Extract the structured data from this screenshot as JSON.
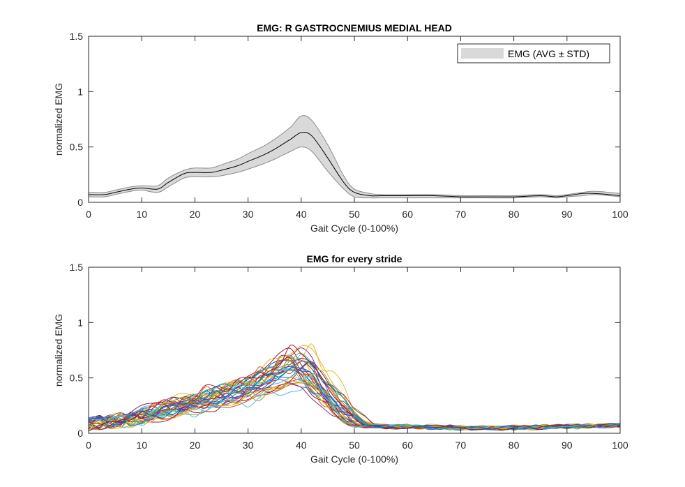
{
  "chart_data": [
    {
      "type": "area",
      "title": "EMG: R GASTROCNEMIUS MEDIAL HEAD",
      "xlabel": "Gait Cycle (0-100%)",
      "ylabel": "normalized EMG",
      "xlim": [
        0,
        100
      ],
      "ylim": [
        0,
        1.5
      ],
      "xticks": [
        "0",
        "10",
        "20",
        "30",
        "40",
        "50",
        "60",
        "70",
        "80",
        "90",
        "100"
      ],
      "yticks": [
        "0",
        "0.5",
        "1",
        "1.5"
      ],
      "grid": false,
      "legend": {
        "position": "top-right",
        "entries": [
          "EMG (AVG ± STD)"
        ]
      },
      "colors": {
        "band_fill": "#d9d9d9",
        "band_edge": "#8c8c8c",
        "mean_line": "#000000"
      },
      "series": [
        {
          "name": "EMG (AVG ± STD)",
          "x": [
            0,
            3,
            5,
            8,
            10,
            13,
            15,
            18,
            20,
            23,
            25,
            28,
            30,
            33,
            35,
            38,
            40,
            42,
            45,
            48,
            50,
            53,
            55,
            60,
            65,
            70,
            75,
            80,
            85,
            88,
            90,
            93,
            95,
            98,
            100
          ],
          "mean": [
            0.07,
            0.07,
            0.09,
            0.12,
            0.13,
            0.12,
            0.18,
            0.26,
            0.27,
            0.27,
            0.29,
            0.33,
            0.37,
            0.43,
            0.48,
            0.57,
            0.63,
            0.6,
            0.4,
            0.18,
            0.09,
            0.06,
            0.06,
            0.06,
            0.06,
            0.05,
            0.05,
            0.05,
            0.06,
            0.05,
            0.06,
            0.08,
            0.08,
            0.07,
            0.06
          ],
          "lower": [
            0.05,
            0.05,
            0.07,
            0.1,
            0.11,
            0.09,
            0.14,
            0.22,
            0.23,
            0.23,
            0.24,
            0.27,
            0.3,
            0.35,
            0.39,
            0.46,
            0.5,
            0.46,
            0.28,
            0.12,
            0.05,
            0.04,
            0.04,
            0.04,
            0.04,
            0.04,
            0.04,
            0.04,
            0.05,
            0.04,
            0.05,
            0.06,
            0.07,
            0.06,
            0.05
          ],
          "upper": [
            0.09,
            0.09,
            0.11,
            0.14,
            0.15,
            0.15,
            0.22,
            0.29,
            0.31,
            0.31,
            0.34,
            0.39,
            0.44,
            0.51,
            0.57,
            0.68,
            0.78,
            0.74,
            0.52,
            0.24,
            0.12,
            0.08,
            0.07,
            0.07,
            0.07,
            0.06,
            0.06,
            0.06,
            0.07,
            0.06,
            0.07,
            0.09,
            0.1,
            0.09,
            0.08
          ]
        }
      ]
    },
    {
      "type": "line",
      "title": "EMG for every stride",
      "xlabel": "Gait Cycle (0-100%)",
      "ylabel": "normalized EMG",
      "xlim": [
        0,
        100
      ],
      "ylim": [
        0,
        1.5
      ],
      "xticks": [
        "0",
        "10",
        "20",
        "30",
        "40",
        "50",
        "60",
        "70",
        "80",
        "90",
        "100"
      ],
      "yticks": [
        "0",
        "0.5",
        "1",
        "1.5"
      ],
      "grid": false,
      "stride_count": 36,
      "colors": [
        "#0072BD",
        "#D95319",
        "#EDB120",
        "#7E2F8E",
        "#77AC30",
        "#4DBEEE",
        "#A2142F"
      ],
      "series": [
        {
          "x": [
            0,
            10,
            20,
            30,
            40,
            48,
            52,
            60,
            70,
            80,
            90,
            100
          ],
          "values": [
            0.08,
            0.14,
            0.27,
            0.39,
            0.62,
            0.21,
            0.07,
            0.06,
            0.05,
            0.05,
            0.06,
            0.07
          ]
        }
      ]
    }
  ]
}
